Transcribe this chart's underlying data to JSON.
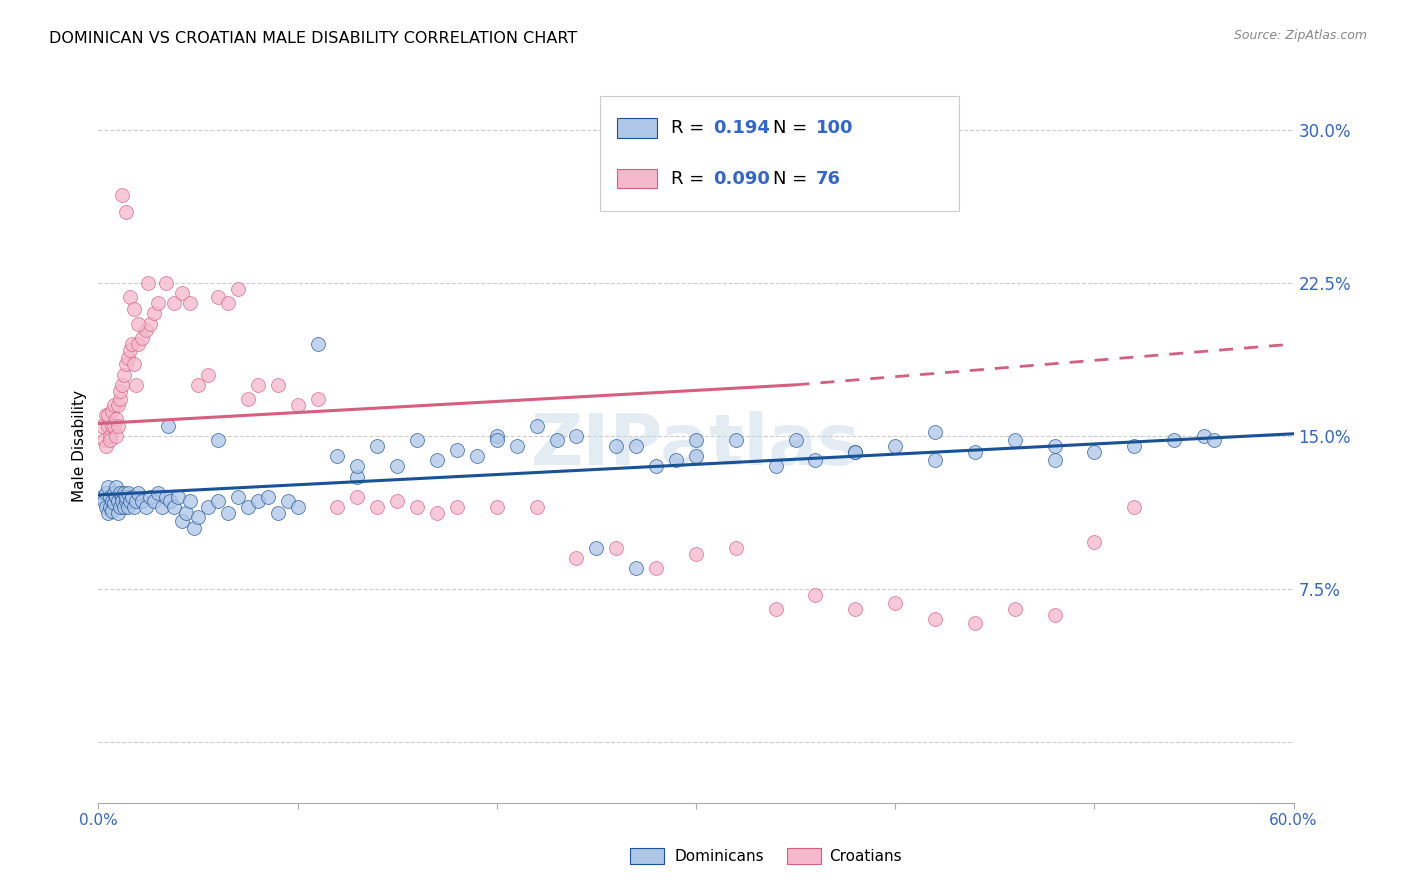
{
  "title": "DOMINICAN VS CROATIAN MALE DISABILITY CORRELATION CHART",
  "source": "Source: ZipAtlas.com",
  "ylabel": "Male Disability",
  "yticks": [
    0.0,
    0.075,
    0.15,
    0.225,
    0.3
  ],
  "ytick_labels": [
    "",
    "7.5%",
    "15.0%",
    "22.5%",
    "30.0%"
  ],
  "xmin": 0.0,
  "xmax": 0.6,
  "ymin": -0.03,
  "ymax": 0.32,
  "blue_R": 0.194,
  "blue_N": 100,
  "pink_R": 0.09,
  "pink_N": 76,
  "blue_color": "#aec6e8",
  "pink_color": "#f5b8cc",
  "blue_line_color": "#1a5296",
  "pink_line_color": "#d45f7f",
  "legend_label_blue": "Dominicans",
  "legend_label_pink": "Croatians",
  "watermark": "ZIPatlas",
  "blue_scatter_x": [
    0.002,
    0.003,
    0.004,
    0.004,
    0.005,
    0.005,
    0.006,
    0.006,
    0.007,
    0.007,
    0.008,
    0.008,
    0.009,
    0.009,
    0.01,
    0.01,
    0.011,
    0.011,
    0.012,
    0.012,
    0.013,
    0.013,
    0.014,
    0.014,
    0.015,
    0.015,
    0.016,
    0.017,
    0.018,
    0.019,
    0.02,
    0.022,
    0.024,
    0.026,
    0.028,
    0.03,
    0.032,
    0.034,
    0.036,
    0.038,
    0.04,
    0.042,
    0.044,
    0.046,
    0.048,
    0.05,
    0.055,
    0.06,
    0.065,
    0.07,
    0.075,
    0.08,
    0.085,
    0.09,
    0.095,
    0.1,
    0.11,
    0.12,
    0.13,
    0.14,
    0.15,
    0.16,
    0.17,
    0.18,
    0.19,
    0.2,
    0.21,
    0.22,
    0.23,
    0.24,
    0.25,
    0.26,
    0.27,
    0.28,
    0.29,
    0.3,
    0.32,
    0.34,
    0.36,
    0.38,
    0.4,
    0.42,
    0.44,
    0.46,
    0.48,
    0.5,
    0.52,
    0.54,
    0.555,
    0.56,
    0.035,
    0.06,
    0.13,
    0.2,
    0.27,
    0.35,
    0.42,
    0.48,
    0.3,
    0.38
  ],
  "blue_scatter_y": [
    0.12,
    0.118,
    0.122,
    0.115,
    0.125,
    0.112,
    0.12,
    0.115,
    0.118,
    0.113,
    0.122,
    0.117,
    0.12,
    0.125,
    0.118,
    0.112,
    0.122,
    0.115,
    0.12,
    0.118,
    0.115,
    0.122,
    0.118,
    0.12,
    0.115,
    0.122,
    0.118,
    0.12,
    0.115,
    0.118,
    0.122,
    0.118,
    0.115,
    0.12,
    0.118,
    0.122,
    0.115,
    0.12,
    0.118,
    0.115,
    0.12,
    0.108,
    0.112,
    0.118,
    0.105,
    0.11,
    0.115,
    0.118,
    0.112,
    0.12,
    0.115,
    0.118,
    0.12,
    0.112,
    0.118,
    0.115,
    0.195,
    0.14,
    0.13,
    0.145,
    0.135,
    0.148,
    0.138,
    0.143,
    0.14,
    0.15,
    0.145,
    0.155,
    0.148,
    0.15,
    0.095,
    0.145,
    0.085,
    0.135,
    0.138,
    0.14,
    0.148,
    0.135,
    0.138,
    0.142,
    0.145,
    0.138,
    0.142,
    0.148,
    0.138,
    0.142,
    0.145,
    0.148,
    0.15,
    0.148,
    0.155,
    0.148,
    0.135,
    0.148,
    0.145,
    0.148,
    0.152,
    0.145,
    0.148,
    0.142
  ],
  "pink_scatter_x": [
    0.002,
    0.003,
    0.004,
    0.004,
    0.005,
    0.005,
    0.006,
    0.006,
    0.007,
    0.007,
    0.008,
    0.008,
    0.009,
    0.009,
    0.01,
    0.01,
    0.011,
    0.011,
    0.012,
    0.013,
    0.014,
    0.015,
    0.016,
    0.017,
    0.018,
    0.019,
    0.02,
    0.022,
    0.024,
    0.026,
    0.028,
    0.03,
    0.034,
    0.038,
    0.042,
    0.046,
    0.05,
    0.055,
    0.06,
    0.065,
    0.07,
    0.075,
    0.08,
    0.09,
    0.1,
    0.11,
    0.12,
    0.13,
    0.14,
    0.15,
    0.16,
    0.17,
    0.18,
    0.2,
    0.22,
    0.24,
    0.26,
    0.28,
    0.3,
    0.32,
    0.34,
    0.36,
    0.38,
    0.4,
    0.42,
    0.44,
    0.46,
    0.48,
    0.5,
    0.52,
    0.012,
    0.014,
    0.016,
    0.018,
    0.02,
    0.025
  ],
  "pink_scatter_y": [
    0.155,
    0.148,
    0.16,
    0.145,
    0.155,
    0.16,
    0.15,
    0.148,
    0.155,
    0.162,
    0.155,
    0.165,
    0.15,
    0.158,
    0.155,
    0.165,
    0.168,
    0.172,
    0.175,
    0.18,
    0.185,
    0.188,
    0.192,
    0.195,
    0.185,
    0.175,
    0.195,
    0.198,
    0.202,
    0.205,
    0.21,
    0.215,
    0.225,
    0.215,
    0.22,
    0.215,
    0.175,
    0.18,
    0.218,
    0.215,
    0.222,
    0.168,
    0.175,
    0.175,
    0.165,
    0.168,
    0.115,
    0.12,
    0.115,
    0.118,
    0.115,
    0.112,
    0.115,
    0.115,
    0.115,
    0.09,
    0.095,
    0.085,
    0.092,
    0.095,
    0.065,
    0.072,
    0.065,
    0.068,
    0.06,
    0.058,
    0.065,
    0.062,
    0.098,
    0.115,
    0.268,
    0.26,
    0.218,
    0.212,
    0.205,
    0.225
  ]
}
